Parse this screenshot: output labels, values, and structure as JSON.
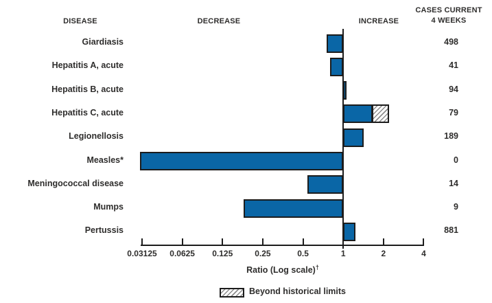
{
  "figure": {
    "headers": {
      "disease": "DISEASE",
      "decrease": "DECREASE",
      "increase": "INCREASE",
      "cases_line1": "CASES CURRENT",
      "cases_line2": "4 WEEKS"
    },
    "xlabel": "Ratio (Log scale)",
    "xlabel_dagger": "†",
    "legend_label": "Beyond historical limits",
    "colors": {
      "bar_fill": "#0a66a6",
      "line": "#1c1c1c",
      "text": "#2e2d2c",
      "hatch_line": "#8c8c8c"
    }
  },
  "chart_data": {
    "type": "bar",
    "orientation": "horizontal",
    "x_scale": "log2",
    "x_ticks": [
      "0.03125",
      "0.0625",
      "0.125",
      "0.25",
      "0.5",
      "1",
      "2",
      "4"
    ],
    "x_range": [
      0.03125,
      4
    ],
    "baseline_ratio": 1,
    "xlabel": "Ratio (Log scale)†",
    "legend": [
      {
        "label": "Beyond historical limits",
        "style": "hatched"
      }
    ],
    "columns": [
      "DISEASE",
      "Ratio (Log scale)",
      "CASES CURRENT 4 WEEKS"
    ],
    "rows": [
      {
        "disease": "Giardiasis",
        "ratio": 0.75,
        "cases": 498
      },
      {
        "disease": "Hepatitis A, acute",
        "ratio": 0.8,
        "cases": 41
      },
      {
        "disease": "Hepatitis B, acute",
        "ratio": 1.04,
        "cases": 94
      },
      {
        "disease": "Hepatitis C, acute",
        "ratio": 1.66,
        "beyond_historical_ratio": 2.19,
        "cases": 79
      },
      {
        "disease": "Legionellosis",
        "ratio": 1.43,
        "cases": 189
      },
      {
        "disease": "Measles*",
        "ratio": 0,
        "cases": 0
      },
      {
        "disease": "Meningococcal disease",
        "ratio": 0.54,
        "cases": 14
      },
      {
        "disease": "Mumps",
        "ratio": 0.18,
        "cases": 9
      },
      {
        "disease": "Pertussis",
        "ratio": 1.24,
        "cases": 881
      }
    ]
  }
}
